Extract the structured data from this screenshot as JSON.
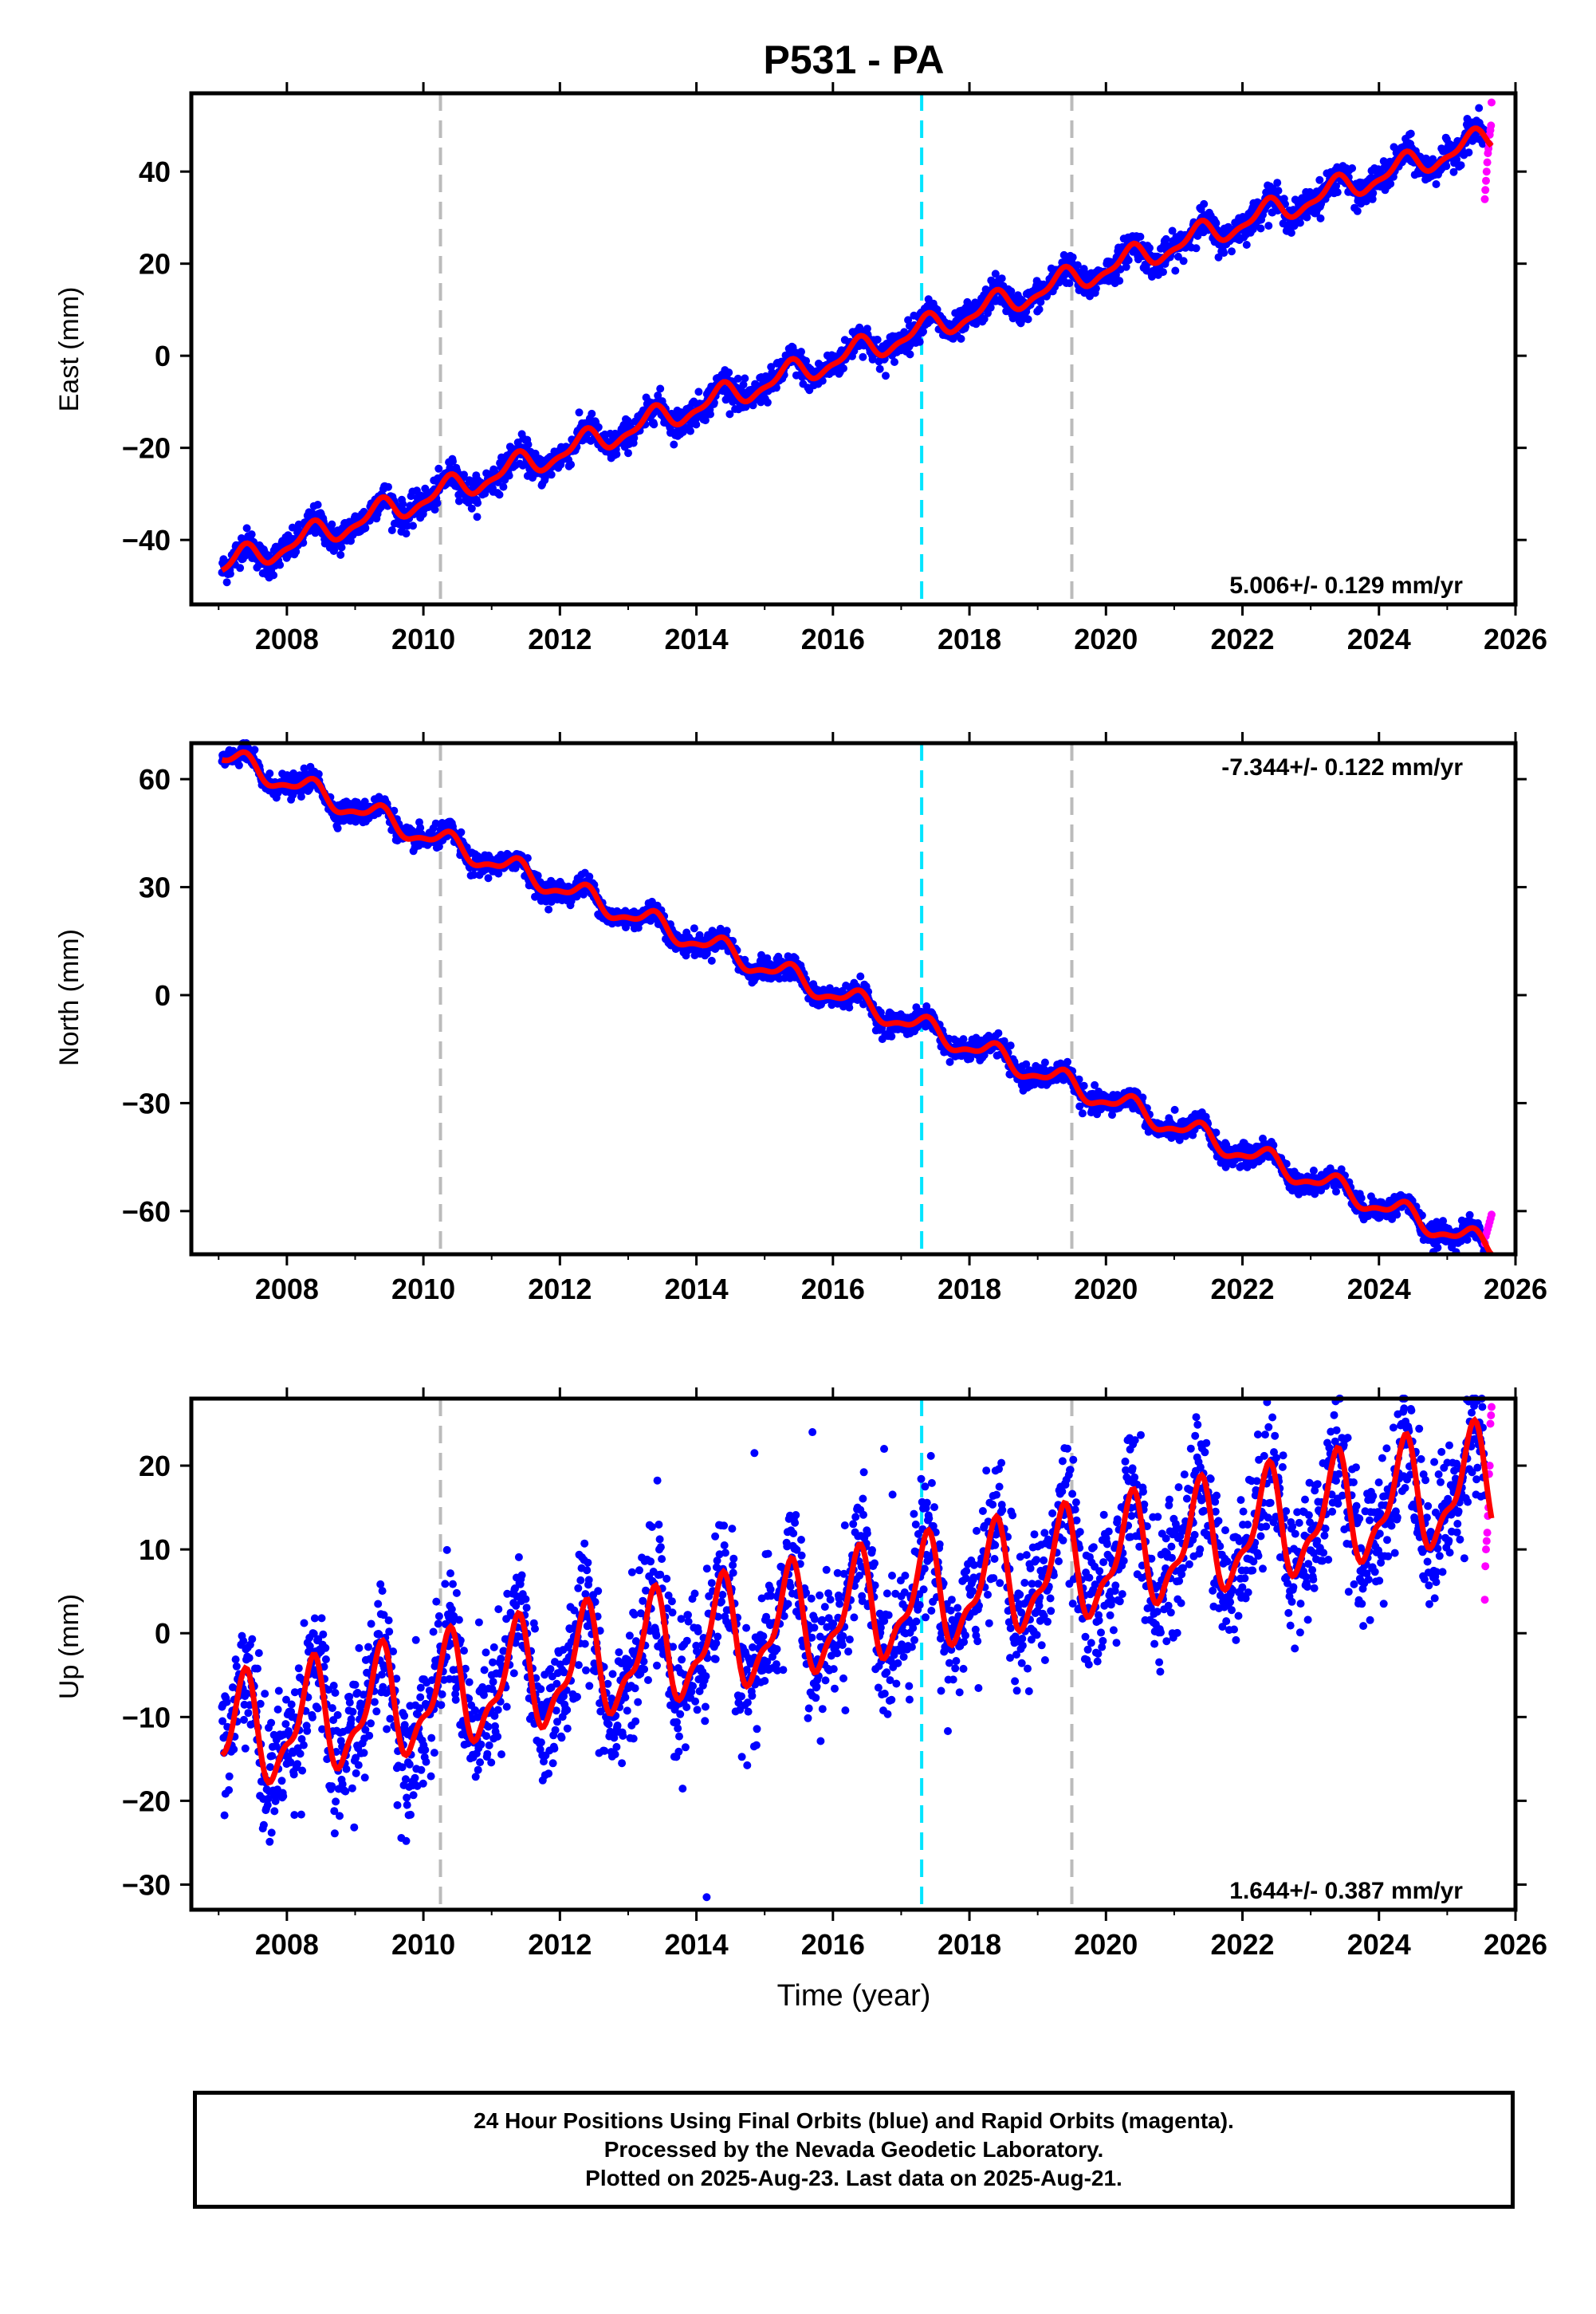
{
  "title": "P531 - PA",
  "xlabel": "Time (year)",
  "footer": {
    "line1": "24 Hour Positions Using Final Orbits (blue) and Rapid Orbits (magenta).",
    "line2": "Processed by the Nevada Geodetic Laboratory.",
    "line3": "Plotted on 2025-Aug-23. Last data on 2025-Aug-21."
  },
  "colors": {
    "final_orbits": "#0000ff",
    "rapid_orbits": "#ff00ff",
    "model_fit": "#ff0000",
    "grey_event": "#bbbbbb",
    "cyan_event": "#00e5ff"
  },
  "chart_data": [
    {
      "type": "scatter",
      "component": "East",
      "ylabel": "East (mm)",
      "xlim": [
        2006.6,
        2026.0
      ],
      "ylim": [
        -54,
        57
      ],
      "x_ticks": [
        "2008",
        "2010",
        "2012",
        "2014",
        "2016",
        "2018",
        "2020",
        "2022",
        "2024",
        "2026"
      ],
      "y_ticks": [
        "−40",
        "−20",
        "0",
        "20",
        "40"
      ],
      "y_tick_values": [
        -40,
        -20,
        0,
        20,
        40
      ],
      "rate_label": "5.006+/- 0.129 mm/yr",
      "rate_position": "bottom-right",
      "rate": 5.006,
      "intercept_2016": -1.0,
      "seasonal_amplitude": 2.5,
      "scatter": 1.6,
      "range": [
        2007.05,
        2025.55
      ],
      "rapid_range": [
        2025.55,
        2025.65
      ],
      "rapid_values": [
        34,
        36,
        38,
        40,
        42,
        44,
        45,
        46,
        48,
        49,
        50,
        55
      ],
      "events": [
        {
          "x": 2010.25,
          "color": "grey"
        },
        {
          "x": 2017.3,
          "color": "cyan"
        },
        {
          "x": 2019.5,
          "color": "grey"
        }
      ]
    },
    {
      "type": "scatter",
      "component": "North",
      "ylabel": "North (mm)",
      "xlim": [
        2006.6,
        2026.0
      ],
      "ylim": [
        -72,
        70
      ],
      "x_ticks": [
        "2008",
        "2010",
        "2012",
        "2014",
        "2016",
        "2018",
        "2020",
        "2022",
        "2024",
        "2026"
      ],
      "y_ticks": [
        "−60",
        "−30",
        "0",
        "30",
        "60"
      ],
      "y_tick_values": [
        -60,
        -30,
        0,
        30,
        60
      ],
      "rate_label": "-7.344+/- 0.122 mm/yr",
      "rate_position": "top-right",
      "rate": -7.344,
      "intercept_2016": 0.5,
      "seasonal_amplitude": 2.8,
      "scatter": 1.5,
      "range": [
        2007.05,
        2025.55
      ],
      "rapid_range": [
        2025.55,
        2025.65
      ],
      "rapid_values": [
        -69,
        -67,
        -66,
        -65,
        -64,
        -63,
        -62,
        -61
      ],
      "events": [
        {
          "x": 2010.25,
          "color": "grey"
        },
        {
          "x": 2017.3,
          "color": "cyan"
        },
        {
          "x": 2019.5,
          "color": "grey"
        }
      ]
    },
    {
      "type": "scatter",
      "component": "Up",
      "ylabel": "Up (mm)",
      "xlim": [
        2006.6,
        2026.0
      ],
      "ylim": [
        -33,
        28
      ],
      "x_ticks": [
        "2008",
        "2010",
        "2012",
        "2014",
        "2016",
        "2018",
        "2020",
        "2022",
        "2024",
        "2026"
      ],
      "y_ticks": [
        "−30",
        "−20",
        "−10",
        "0",
        "10",
        "20"
      ],
      "y_tick_values": [
        -30,
        -20,
        -10,
        0,
        10,
        20
      ],
      "rate_label": "1.644+/- 0.387 mm/yr",
      "rate_position": "bottom-right",
      "rate": 1.644,
      "intercept_2016": 2.0,
      "seasonal_amplitude": 6.0,
      "scatter": 4.0,
      "range": [
        2007.05,
        2025.55
      ],
      "rapid_range": [
        2025.55,
        2025.65
      ],
      "rapid_values": [
        4,
        8,
        10,
        11,
        12,
        14,
        15,
        19,
        20,
        25,
        26,
        27
      ],
      "outliers": [
        [
          2014.15,
          -31.5
        ],
        [
          2015.7,
          24
        ],
        [
          2014.85,
          21.5
        ],
        [
          2016.75,
          22
        ]
      ],
      "events": [
        {
          "x": 2010.25,
          "color": "grey"
        },
        {
          "x": 2017.3,
          "color": "cyan"
        },
        {
          "x": 2019.5,
          "color": "grey"
        }
      ]
    }
  ]
}
